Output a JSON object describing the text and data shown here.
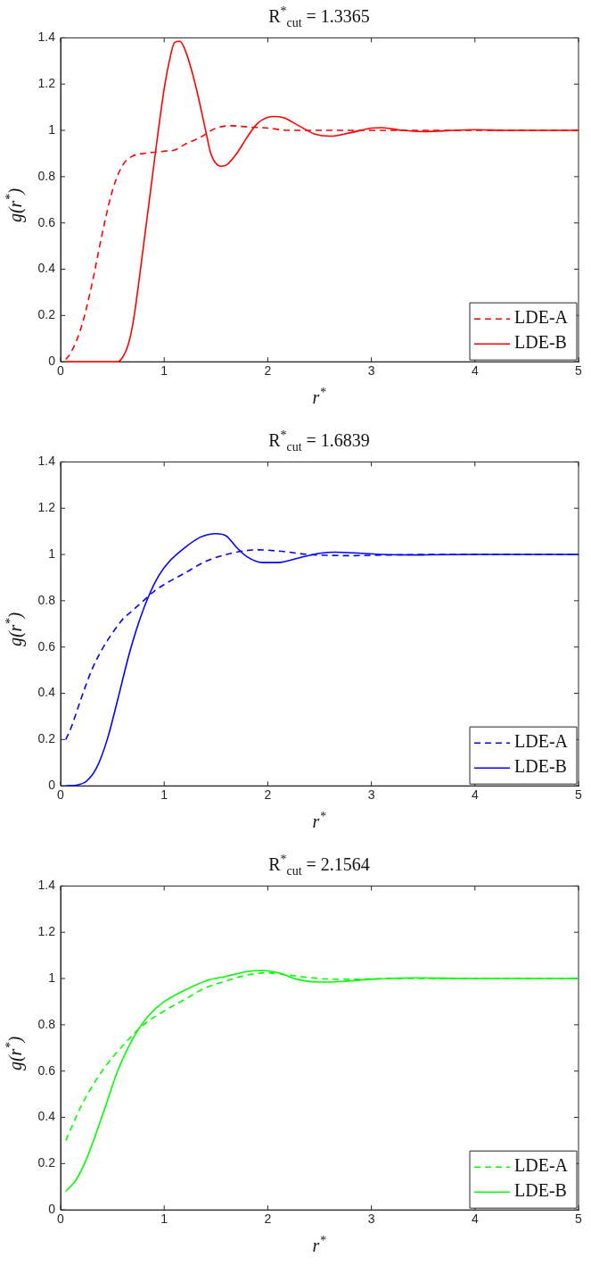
{
  "chart_data": [
    {
      "type": "line",
      "title": "R$^{*}$$_{cut}$ = 1.3365",
      "xlabel": "r$^{*}$",
      "ylabel": "g(r$^{*}$)",
      "xlim": [
        0,
        5
      ],
      "xticks": [
        0,
        1,
        2,
        3,
        4,
        5
      ],
      "ylim": [
        0,
        1.4
      ],
      "yticks": [
        0,
        0.2,
        0.4,
        0.6,
        0.8,
        1,
        1.2,
        1.4
      ],
      "grid": false,
      "legend": "bottom right",
      "series": [
        {
          "name": "LDE-A",
          "color": "#ff0000",
          "line_style": "dashed",
          "x": [
            0.05,
            0.1,
            0.2,
            0.3,
            0.4,
            0.5,
            0.6,
            0.7,
            0.8,
            1.0,
            1.1,
            1.2,
            1.35,
            1.5,
            1.65,
            1.8,
            2.0,
            2.2,
            2.5,
            3.0,
            3.5,
            4.0,
            5.0
          ],
          "values": [
            0.01,
            0.04,
            0.15,
            0.33,
            0.55,
            0.74,
            0.85,
            0.89,
            0.9,
            0.91,
            0.915,
            0.94,
            0.97,
            1.01,
            1.02,
            1.015,
            1.01,
            1.0,
            1.0,
            1.0,
            1.0,
            1.0,
            1.0
          ]
        },
        {
          "name": "LDE-B",
          "color": "#ff0000",
          "line_style": "solid",
          "x": [
            0.05,
            0.3,
            0.55,
            0.6,
            0.65,
            0.7,
            0.8,
            0.9,
            1.0,
            1.05,
            1.1,
            1.15,
            1.2,
            1.3,
            1.4,
            1.45,
            1.55,
            1.6,
            1.7,
            1.8,
            1.9,
            2.05,
            2.15,
            2.3,
            2.45,
            2.6,
            2.8,
            3.0,
            3.1,
            3.3,
            3.5,
            3.8,
            4.0,
            4.3,
            5.0
          ],
          "values": [
            0,
            0,
            0,
            0.02,
            0.07,
            0.17,
            0.5,
            0.85,
            1.18,
            1.3,
            1.38,
            1.385,
            1.35,
            1.2,
            1.0,
            0.9,
            0.845,
            0.85,
            0.9,
            0.97,
            1.03,
            1.06,
            1.055,
            1.02,
            0.985,
            0.975,
            0.99,
            1.01,
            1.012,
            1.0,
            0.995,
            1.0,
            1.003,
            1.0,
            1.0
          ]
        }
      ]
    },
    {
      "type": "line",
      "title": "R$^{*}$$_{cut}$ = 1.6839",
      "xlabel": "r$^{*}$",
      "ylabel": "g(r$^{*}$)",
      "xlim": [
        0,
        5
      ],
      "xticks": [
        0,
        1,
        2,
        3,
        4,
        5
      ],
      "ylim": [
        0,
        1.4
      ],
      "yticks": [
        0,
        0.2,
        0.4,
        0.6,
        0.8,
        1,
        1.2,
        1.4
      ],
      "grid": false,
      "legend": "bottom right",
      "series": [
        {
          "name": "LDE-A",
          "color": "#0000ff",
          "line_style": "dashed",
          "x": [
            0.05,
            0.1,
            0.2,
            0.3,
            0.4,
            0.5,
            0.6,
            0.7,
            0.8,
            0.9,
            1.0,
            1.2,
            1.4,
            1.6,
            1.9,
            2.1,
            2.4,
            2.8,
            3.2,
            3.6,
            5.0
          ],
          "values": [
            0.2,
            0.25,
            0.38,
            0.5,
            0.59,
            0.66,
            0.72,
            0.76,
            0.8,
            0.84,
            0.87,
            0.92,
            0.97,
            1.0,
            1.02,
            1.015,
            1.0,
            0.995,
            0.998,
            1.0,
            1.0
          ]
        },
        {
          "name": "LDE-B",
          "color": "#0000ff",
          "line_style": "solid",
          "x": [
            0.05,
            0.15,
            0.25,
            0.35,
            0.45,
            0.55,
            0.65,
            0.75,
            0.85,
            0.95,
            1.05,
            1.2,
            1.35,
            1.5,
            1.6,
            1.7,
            1.8,
            1.95,
            2.1,
            2.3,
            2.5,
            2.65,
            2.9,
            3.1,
            3.5,
            4.0,
            5.0
          ],
          "values": [
            0,
            0.003,
            0.02,
            0.08,
            0.2,
            0.37,
            0.55,
            0.7,
            0.82,
            0.91,
            0.97,
            1.03,
            1.075,
            1.09,
            1.08,
            1.03,
            0.99,
            0.965,
            0.965,
            0.985,
            1.005,
            1.01,
            1.005,
            1.0,
            0.998,
            1.0,
            1.0
          ]
        }
      ]
    },
    {
      "type": "line",
      "title": "R$^{*}$$_{cut}$ = 2.1564",
      "xlabel": "r$^{*}$",
      "ylabel": "g(r$^{*}$)",
      "xlim": [
        0,
        5
      ],
      "xticks": [
        0,
        1,
        2,
        3,
        4,
        5
      ],
      "ylim": [
        0,
        1.4
      ],
      "yticks": [
        0,
        0.2,
        0.4,
        0.6,
        0.8,
        1,
        1.2,
        1.4
      ],
      "grid": false,
      "legend": "bottom right",
      "series": [
        {
          "name": "LDE-A",
          "color": "#00ff00",
          "line_style": "dashed",
          "x": [
            0.05,
            0.2,
            0.4,
            0.6,
            0.8,
            1.0,
            1.2,
            1.4,
            1.6,
            1.8,
            2.0,
            2.2,
            2.5,
            2.8,
            3.2,
            5.0
          ],
          "values": [
            0.3,
            0.45,
            0.6,
            0.71,
            0.8,
            0.86,
            0.91,
            0.96,
            0.99,
            1.015,
            1.025,
            1.015,
            1.0,
            0.997,
            1.0,
            1.0
          ]
        },
        {
          "name": "LDE-B",
          "color": "#00ff00",
          "line_style": "solid",
          "x": [
            0.05,
            0.15,
            0.25,
            0.35,
            0.45,
            0.55,
            0.65,
            0.75,
            0.85,
            1.0,
            1.2,
            1.4,
            1.6,
            1.8,
            1.95,
            2.1,
            2.3,
            2.5,
            2.7,
            3.0,
            3.4,
            4.0,
            5.0
          ],
          "values": [
            0.08,
            0.13,
            0.22,
            0.34,
            0.47,
            0.6,
            0.7,
            0.78,
            0.84,
            0.9,
            0.95,
            0.99,
            1.01,
            1.03,
            1.035,
            1.025,
            0.995,
            0.985,
            0.987,
            0.997,
            1.003,
            1.0,
            1.0
          ]
        }
      ]
    }
  ]
}
